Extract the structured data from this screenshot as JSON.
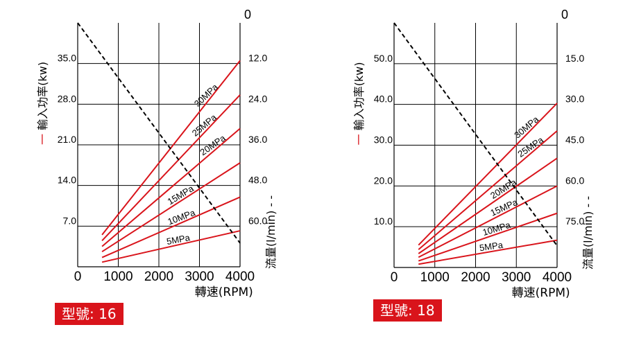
{
  "colors": {
    "power": "#d9141b",
    "flow": "#000000",
    "grid": "#000000",
    "badge": "#d9141b"
  },
  "chart_data": [
    {
      "type": "line",
      "model_label": "型號: 16",
      "power_axis_label": "輸入功率(kw)",
      "power_marker": "一",
      "flow_axis_label": "流量(l/min)",
      "flow_marker": "- -",
      "xlabel": "轉速(RPM)",
      "x_ticks": [
        0,
        1000,
        2000,
        3000,
        4000
      ],
      "x_tick_labels": [
        "0",
        "1000",
        "2000",
        "3000",
        "4000"
      ],
      "xlim": [
        0,
        4000
      ],
      "ylim": [
        0,
        42
      ],
      "y_left_ticks": [
        7,
        14,
        21,
        28,
        35
      ],
      "y_left_tick_labels": [
        "7.0",
        "14.0",
        "21.0",
        "28.0",
        "35.0"
      ],
      "y_right_ticks": [
        0,
        12,
        24,
        36,
        48,
        60
      ],
      "y_right_tick_labels": [
        "0",
        "12.0",
        "24.0",
        "36.0",
        "48.0",
        "60.0"
      ],
      "grid": true,
      "power_series": [
        {
          "name": "30MPa",
          "x": [
            600,
            4000
          ],
          "y": [
            5.5,
            35.5
          ]
        },
        {
          "name": "25MPa",
          "x": [
            600,
            4000
          ],
          "y": [
            4.5,
            29.6
          ]
        },
        {
          "name": "20MPa",
          "x": [
            600,
            4000
          ],
          "y": [
            3.5,
            23.8
          ]
        },
        {
          "name": "15MPa",
          "x": [
            600,
            4000
          ],
          "y": [
            2.6,
            17.9
          ]
        },
        {
          "name": "10MPa",
          "x": [
            600,
            4000
          ],
          "y": [
            1.6,
            12.0
          ]
        },
        {
          "name": "5MPa",
          "x": [
            600,
            4000
          ],
          "y": [
            0.8,
            6.2
          ]
        }
      ],
      "flow_series": {
        "x": [
          0,
          4000
        ],
        "y": [
          0,
          65
        ]
      }
    },
    {
      "type": "line",
      "model_label": "型號: 18",
      "power_axis_label": "輸入功率(kw)",
      "power_marker": "一",
      "flow_axis_label": "流量(l/min)",
      "flow_marker": "- -",
      "xlabel": "轉速(RPM)",
      "x_ticks": [
        0,
        1000,
        2000,
        3000,
        4000
      ],
      "x_tick_labels": [
        "0",
        "1000",
        "2000",
        "3000",
        "4000"
      ],
      "xlim": [
        0,
        4000
      ],
      "ylim": [
        0,
        60
      ],
      "y_left_ticks": [
        10,
        20,
        30,
        40,
        50
      ],
      "y_left_tick_labels": [
        "10.0",
        "20.0",
        "30.0",
        "40.0",
        "50.0"
      ],
      "y_right_ticks": [
        0,
        15,
        30,
        45,
        60,
        75
      ],
      "y_right_tick_labels": [
        "0",
        "15.0",
        "30.0",
        "45.0",
        "60.0",
        "75.0"
      ],
      "grid": true,
      "power_series": [
        {
          "name": "30MPa",
          "x": [
            600,
            4000
          ],
          "y": [
            5.5,
            40.3
          ]
        },
        {
          "name": "25MPa",
          "x": [
            600,
            4000
          ],
          "y": [
            4.4,
            33.5
          ]
        },
        {
          "name": "20MPa",
          "x": [
            600,
            4000
          ],
          "y": [
            3.4,
            26.8
          ]
        },
        {
          "name": "15MPa",
          "x": [
            600,
            4000
          ],
          "y": [
            2.5,
            20.0
          ]
        },
        {
          "name": "10MPa",
          "x": [
            600,
            4000
          ],
          "y": [
            1.6,
            13.3
          ]
        },
        {
          "name": "5MPa",
          "x": [
            600,
            4000
          ],
          "y": [
            0.8,
            6.7
          ]
        }
      ],
      "flow_series": {
        "x": [
          0,
          4000
        ],
        "y": [
          0,
          82
        ]
      }
    }
  ]
}
